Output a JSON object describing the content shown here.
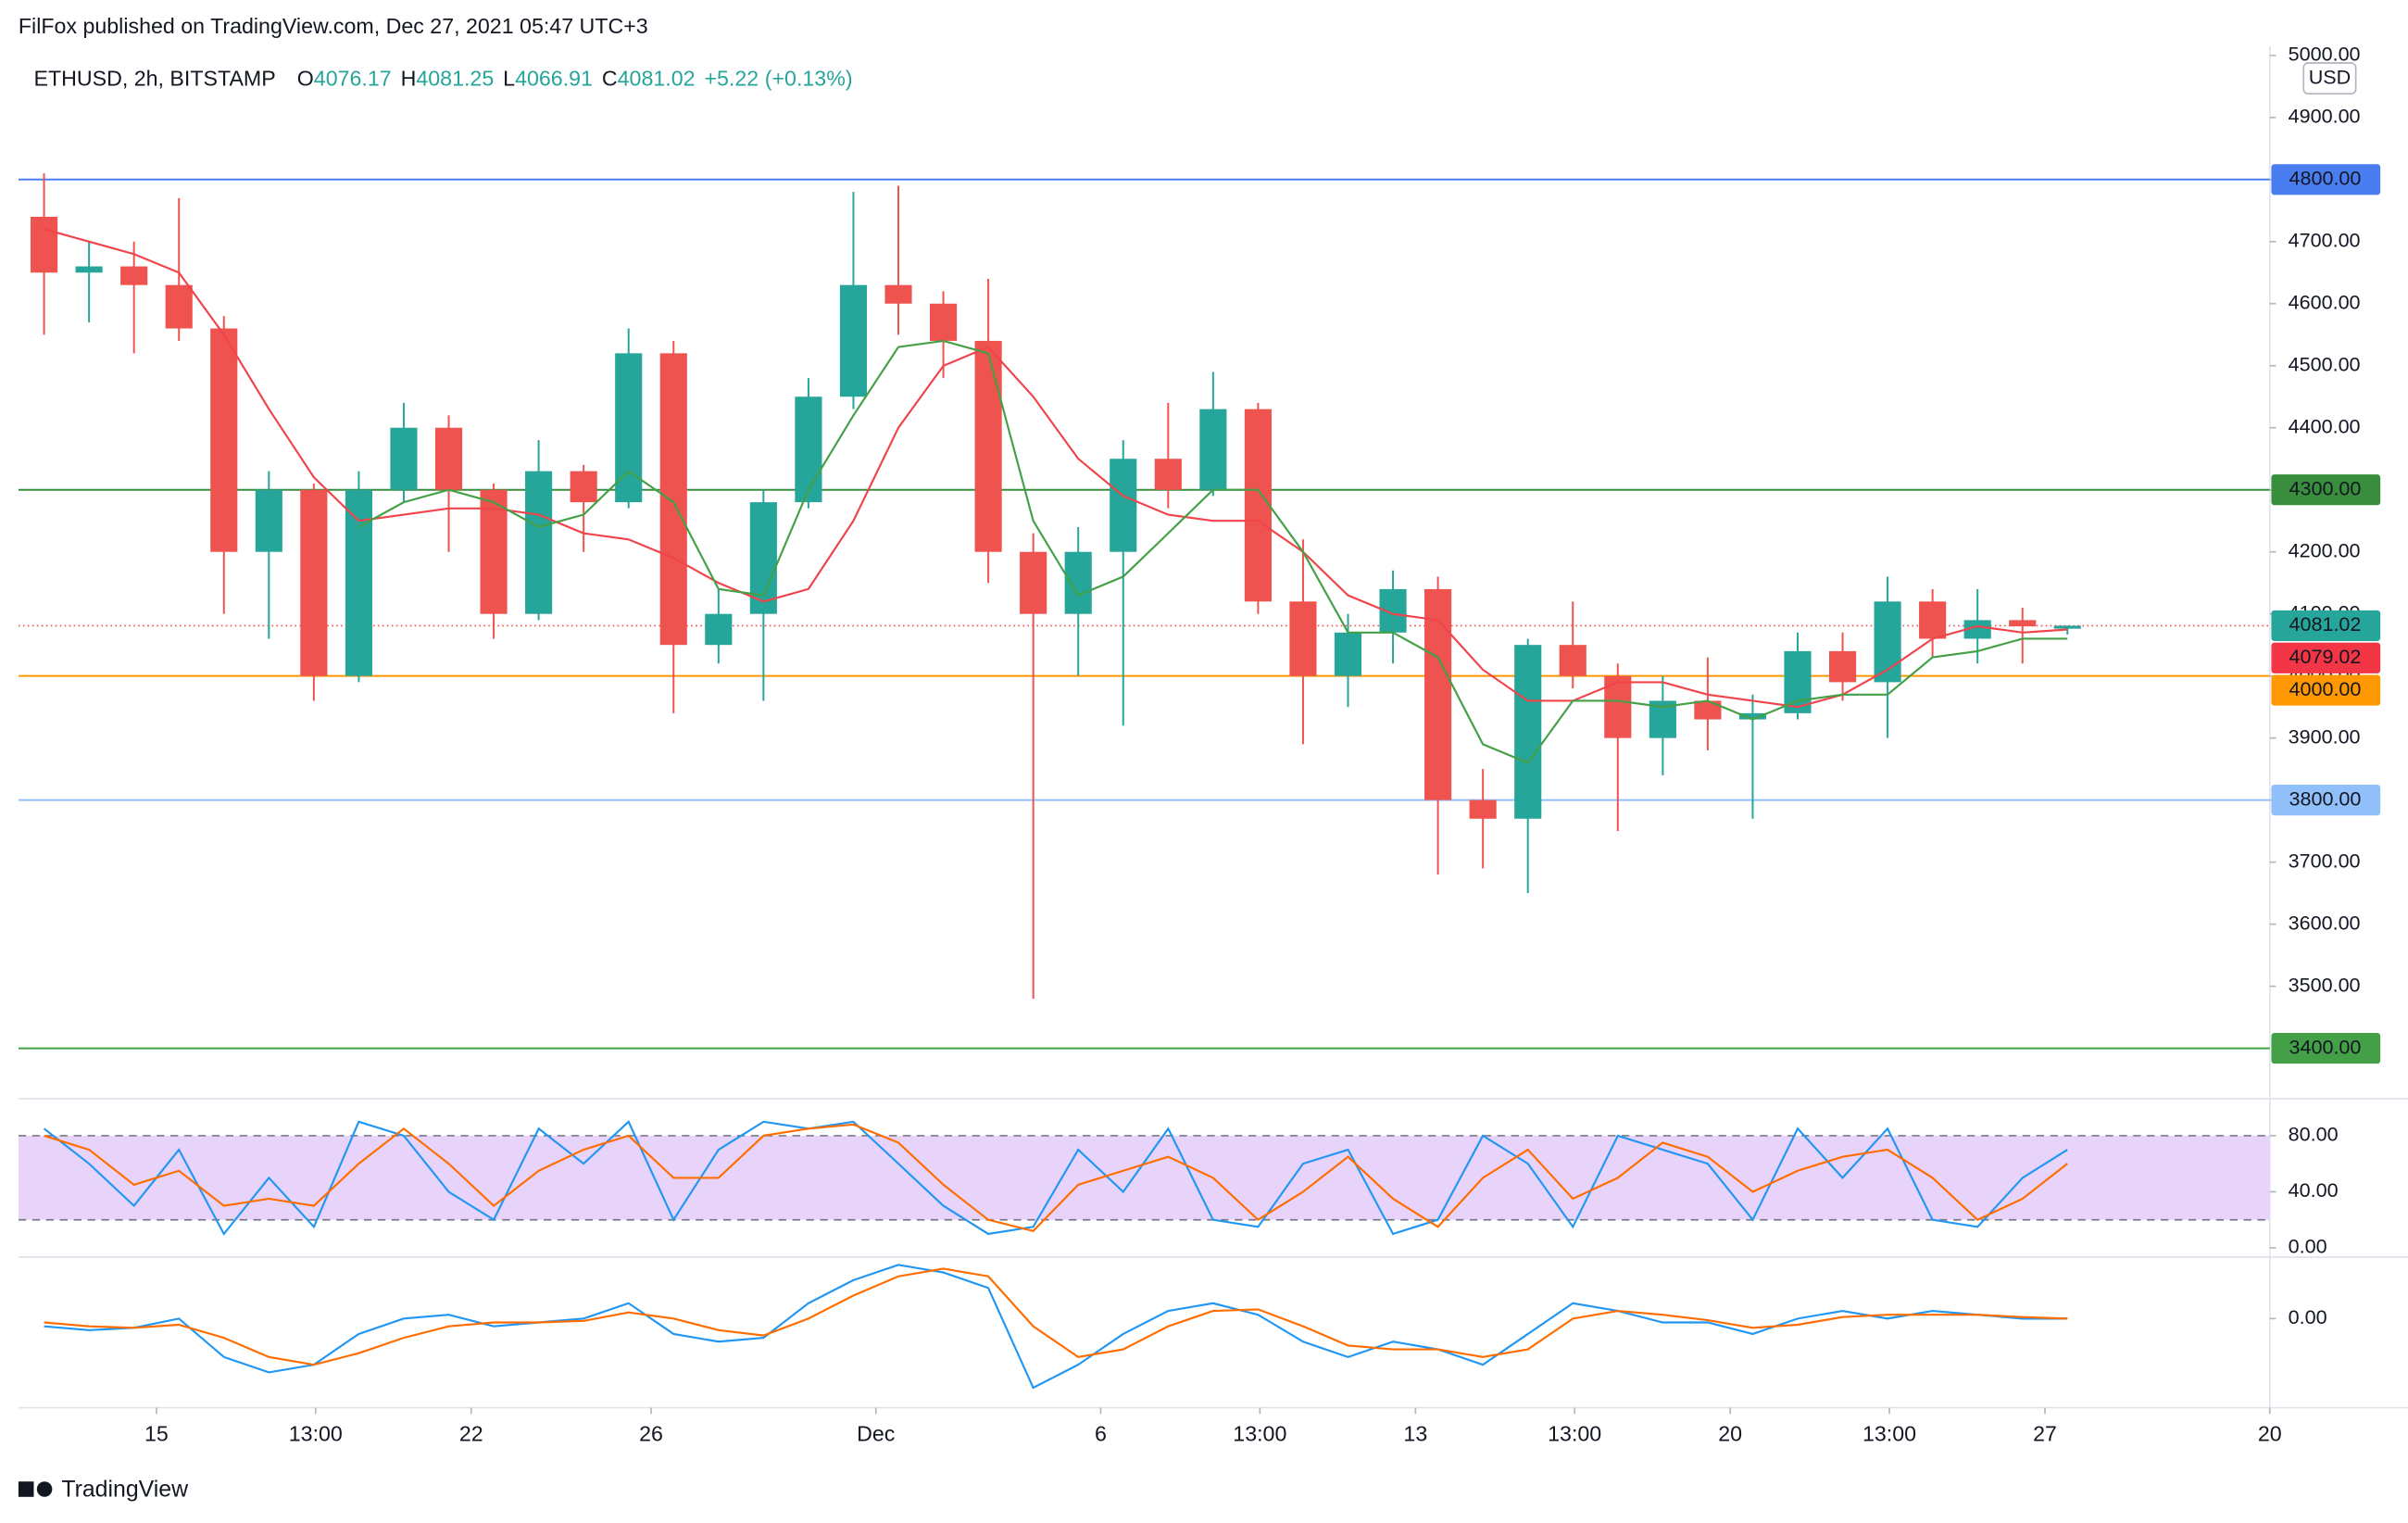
{
  "header": {
    "published": "FilFox published on TradingView.com, Dec 27, 2021 05:47 UTC+3",
    "ohlc": [
      {
        "key": "O",
        "value": 4076.17
      },
      {
        "key": "H",
        "value": 4081.25
      },
      {
        "key": "L",
        "value": 4066.91
      },
      {
        "key": "C",
        "value": 4081.02
      }
    ],
    "change": {
      "value": 5.22,
      "label": "+5.22"
    },
    "change_pct": {
      "value": 0.13,
      "label": "(+0.13%)"
    }
  },
  "footer": {
    "brand": "TradingView"
  },
  "chart_data": [
    {
      "type": "candlestick",
      "title": "ETHUSD, 2h, BITSTAMP",
      "currency": "USD",
      "x": [
        12,
        13,
        14,
        15,
        16,
        17,
        18,
        19,
        20,
        21,
        22,
        23,
        24,
        25,
        26,
        27,
        28,
        29,
        30,
        31,
        32,
        33,
        34,
        35,
        36,
        37,
        38,
        39,
        40,
        41,
        42,
        43,
        44,
        45,
        46,
        47,
        48,
        49,
        50,
        51,
        52,
        53,
        54,
        55,
        56,
        57
      ],
      "open": [
        4740,
        4650,
        4660,
        4630,
        4560,
        4200,
        4300,
        4000,
        4300,
        4400,
        4300,
        4100,
        4330,
        4280,
        4520,
        4050,
        4100,
        4280,
        4450,
        4630,
        4600,
        4540,
        4200,
        4100,
        4200,
        4350,
        4300,
        4430,
        4120,
        4000,
        4070,
        4140,
        3800,
        3770,
        4050,
        4000,
        3900,
        3960,
        3930,
        3940,
        4040,
        3990,
        4120,
        4060,
        4090,
        4076.17
      ],
      "high": [
        4810,
        4700,
        4700,
        4770,
        4580,
        4330,
        4310,
        4330,
        4440,
        4420,
        4310,
        4380,
        4340,
        4560,
        4540,
        4140,
        4300,
        4480,
        4780,
        4790,
        4620,
        4640,
        4230,
        4240,
        4380,
        4440,
        4490,
        4440,
        4220,
        4100,
        4170,
        4160,
        3850,
        4060,
        4120,
        4020,
        4000,
        4030,
        3970,
        4070,
        4070,
        4160,
        4140,
        4140,
        4110,
        4081.25
      ],
      "low": [
        4550,
        4570,
        4520,
        4540,
        4100,
        4060,
        3960,
        3990,
        4280,
        4200,
        4060,
        4090,
        4200,
        4270,
        3940,
        4020,
        3960,
        4270,
        4430,
        4550,
        4480,
        4150,
        3480,
        4000,
        3920,
        4270,
        4290,
        4100,
        3890,
        3950,
        4020,
        3680,
        3690,
        3650,
        3980,
        3750,
        3840,
        3880,
        3770,
        3930,
        3960,
        3900,
        4030,
        4020,
        4020,
        4066.91
      ],
      "close": [
        4650,
        4660,
        4630,
        4560,
        4200,
        4300,
        4000,
        4300,
        4400,
        4300,
        4100,
        4330,
        4280,
        4520,
        4050,
        4100,
        4280,
        4450,
        4630,
        4600,
        4540,
        4200,
        4100,
        4200,
        4350,
        4300,
        4430,
        4120,
        4000,
        4070,
        4140,
        3800,
        3770,
        4050,
        4000,
        3900,
        3960,
        3930,
        3940,
        4040,
        3990,
        4120,
        4060,
        4090,
        4080,
        4081.02
      ],
      "up_color": "#26a69a",
      "down_color": "#ef5350",
      "series": [
        {
          "color": "#f0444b",
          "values": [
            4720,
            4700,
            4680,
            4650,
            4550,
            4430,
            4320,
            4250,
            4260,
            4270,
            4270,
            4260,
            4230,
            4220,
            4190,
            4150,
            4120,
            4140,
            4250,
            4400,
            4500,
            4530,
            4450,
            4350,
            4290,
            4260,
            4250,
            4250,
            4200,
            4130,
            4100,
            4090,
            4010,
            3960,
            3960,
            3990,
            3990,
            3970,
            3960,
            3950,
            3970,
            4010,
            4060,
            4080,
            4070,
            4075
          ]
        },
        {
          "color": "#43a047",
          "values": [
            null,
            null,
            null,
            null,
            null,
            null,
            null,
            4240,
            4280,
            4300,
            4280,
            4240,
            4260,
            4330,
            4280,
            4140,
            4130,
            4300,
            4420,
            4530,
            4540,
            4520,
            4250,
            4130,
            4160,
            4230,
            4300,
            4300,
            4200,
            4070,
            4070,
            4030,
            3890,
            3860,
            3960,
            3960,
            3950,
            3960,
            3930,
            3960,
            3970,
            3970,
            4030,
            4040,
            4060,
            4060
          ]
        }
      ],
      "hlines": [
        {
          "value": 4800,
          "label": "4800.00",
          "color": "#4a7df0",
          "text_color": "#ffffff"
        },
        {
          "value": 4300,
          "label": "4300.00",
          "color": "#388e3c",
          "text_color": "#ffffff"
        },
        {
          "value": 4000,
          "label": "4000.00",
          "color": "#ff9800",
          "text_color": "#131722"
        },
        {
          "value": 3800,
          "label": "3800.00",
          "color": "#90bff9",
          "text_color": "#131722"
        },
        {
          "value": 3400,
          "label": "3400.00",
          "color": "#43a047",
          "text_color": "#ffffff"
        }
      ],
      "price_labels": [
        {
          "value": 4081.02,
          "label": "4081.02",
          "color": "#26a69a",
          "line": true
        },
        {
          "value": 4079.02,
          "label": "4079.02",
          "color": "#f23645",
          "line": false
        }
      ],
      "xlim": [
        11.93,
        62
      ],
      "xticks": [
        15,
        {
          "value": 18.54,
          "label": "13:00"
        },
        22,
        26,
        {
          "value": 31,
          "label": "Dec"
        },
        {
          "value": 36,
          "label": "6"
        },
        {
          "value": 39.54,
          "label": "13:00"
        },
        {
          "value": 43,
          "label": "13"
        },
        {
          "value": 46.54,
          "label": "13:00"
        },
        {
          "value": 50,
          "label": "20"
        },
        {
          "value": 53.54,
          "label": "13:00"
        },
        {
          "value": 57,
          "label": "27"
        },
        {
          "value": 62,
          "label": "20"
        }
      ],
      "ylim": [
        3326,
        5015
      ],
      "yticks": [
        {
          "value": 3500,
          "label": "3500.00"
        },
        {
          "value": 3600,
          "label": "3600.00"
        },
        {
          "value": 3700,
          "label": "3700.00"
        },
        {
          "value": 3800,
          "label": "3800.00"
        },
        {
          "value": 3900,
          "label": "3900.00"
        },
        {
          "value": 4000,
          "label": "4000.00"
        },
        {
          "value": 4100,
          "label": "4100.00"
        },
        {
          "value": 4200,
          "label": "4200.00"
        },
        {
          "value": 4300,
          "label": "4300.00"
        },
        {
          "value": 4400,
          "label": "4400.00"
        },
        {
          "value": 4500,
          "label": "4500.00"
        },
        {
          "value": 4600,
          "label": "4600.00"
        },
        {
          "value": 4700,
          "label": "4700.00"
        },
        {
          "value": 4800,
          "label": "4800.00"
        },
        {
          "value": 4900,
          "label": "4900.00"
        },
        {
          "value": 5000,
          "label": "5000.00"
        }
      ],
      "grid": false
    },
    {
      "type": "line",
      "band": [
        20,
        80
      ],
      "band_color": "#e8d4fb",
      "series": [
        {
          "color": "#2196f3",
          "values": [
            85,
            60,
            30,
            70,
            10,
            50,
            15,
            90,
            80,
            40,
            20,
            85,
            60,
            90,
            20,
            70,
            90,
            85,
            90,
            60,
            30,
            10,
            15,
            70,
            40,
            85,
            20,
            15,
            60,
            70,
            10,
            20,
            80,
            60,
            15,
            80,
            70,
            60,
            20,
            85,
            50,
            85,
            20,
            15,
            50,
            70
          ]
        },
        {
          "color": "#ff6d00",
          "values": [
            80,
            70,
            45,
            55,
            30,
            35,
            30,
            60,
            85,
            60,
            30,
            55,
            70,
            80,
            50,
            50,
            80,
            85,
            88,
            75,
            45,
            20,
            12,
            45,
            55,
            65,
            50,
            20,
            40,
            65,
            35,
            15,
            50,
            70,
            35,
            50,
            75,
            65,
            40,
            55,
            65,
            70,
            50,
            20,
            35,
            60
          ]
        }
      ],
      "ylim": [
        -6.6,
        103
      ],
      "yticks": [
        {
          "value": 0,
          "label": "0.00"
        },
        {
          "value": 40,
          "label": "40.00"
        },
        {
          "value": 80,
          "label": "80.00"
        }
      ],
      "grid": false
    },
    {
      "type": "line",
      "series": [
        {
          "color": "#2196f3",
          "values": [
            -10,
            -15,
            -12,
            0,
            -50,
            -70,
            -60,
            -20,
            0,
            5,
            -10,
            -5,
            0,
            20,
            -20,
            -30,
            -25,
            20,
            50,
            70,
            60,
            40,
            -90,
            -60,
            -20,
            10,
            20,
            5,
            -30,
            -50,
            -30,
            -40,
            -60,
            -20,
            20,
            10,
            -5,
            -5,
            -20,
            0,
            10,
            0,
            10,
            5,
            0,
            0
          ]
        },
        {
          "color": "#ff6d00",
          "values": [
            -5,
            -10,
            -12,
            -8,
            -25,
            -50,
            -60,
            -45,
            -25,
            -10,
            -5,
            -5,
            -3,
            8,
            0,
            -15,
            -22,
            0,
            30,
            55,
            65,
            55,
            -10,
            -50,
            -40,
            -10,
            10,
            12,
            -10,
            -35,
            -40,
            -40,
            -50,
            -40,
            0,
            10,
            5,
            -2,
            -12,
            -8,
            2,
            5,
            5,
            5,
            2,
            0
          ]
        }
      ],
      "ylim": [
        -114,
        76
      ],
      "yticks": [
        {
          "value": 0,
          "label": "0.00"
        }
      ],
      "grid": false
    }
  ]
}
